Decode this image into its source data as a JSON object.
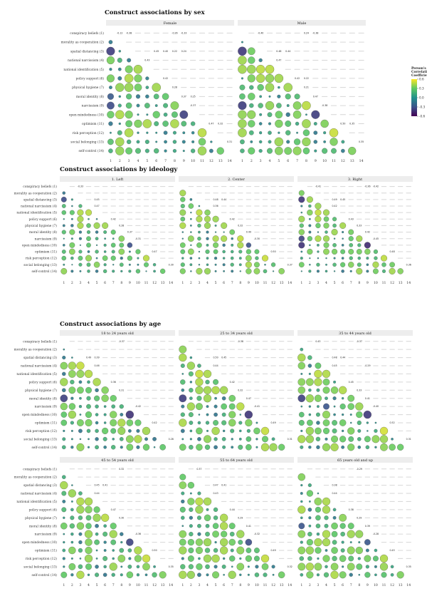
{
  "chart_data": {
    "type": "bubble-correlation-matrix",
    "row_labels": [
      "conspiracy beliefs (1)",
      "morality as cooperation (2)",
      "spatial distancing (3)",
      "national narcissism (4)",
      "national identification (5)",
      "policy support (6)",
      "physical hygiene (7)",
      "moral identity (8)",
      "narcissism (9)",
      "open mindedness (10)",
      "optimism (11)",
      "risk perception (12)",
      "social belonging (13)",
      "self-control (14)"
    ],
    "x_ticks": [
      "1",
      "2",
      "3",
      "4",
      "5",
      "6",
      "7",
      "8",
      "9",
      "10",
      "11",
      "12",
      "13",
      "14"
    ],
    "legend": {
      "title": [
        "Person's",
        "Correlation",
        "Coefficient"
      ],
      "ticks": [
        "0.6",
        "0.3",
        "0.0",
        "-0.3",
        "-0.6"
      ],
      "range": [
        -0.6,
        0.6
      ],
      "colors": [
        "#fde725",
        "#5ec962",
        "#21918c",
        "#3b528b",
        "#440154"
      ]
    },
    "rows": [
      {
        "title": "Construct associations by sex",
        "panels": [
          {
            "strip": "Female",
            "cells": [
              {
                "r": 1,
                "c": 2,
                "v": "-0.12"
              },
              {
                "r": 1,
                "c": 3,
                "v": "-0.38"
              },
              {
                "r": 1,
                "c": 8,
                "v": "-0.26"
              },
              {
                "r": 1,
                "c": 9,
                "v": "-0.33"
              },
              {
                "r": 3,
                "c": 6,
                "v": "0.45"
              },
              {
                "r": 3,
                "c": 7,
                "v": "0.40"
              },
              {
                "r": 3,
                "c": 8,
                "v": "0.22"
              },
              {
                "r": 3,
                "c": 9,
                "v": "0.24"
              },
              {
                "r": 4,
                "c": 5,
                "v": "0.43"
              },
              {
                "r": 6,
                "c": 7,
                "v": "0.42"
              },
              {
                "r": 7,
                "c": 8,
                "v": "0.28"
              },
              {
                "r": 8,
                "c": 9,
                "v": "0.37"
              },
              {
                "r": 8,
                "c": 10,
                "v": "0.25"
              },
              {
                "r": 9,
                "c": 10,
                "v": "-0.37"
              },
              {
                "r": 11,
                "c": 12,
                "v": "0.47"
              },
              {
                "r": 11,
                "c": 13,
                "v": "0.32"
              },
              {
                "r": 13,
                "c": 14,
                "v": "0.31"
              }
            ]
          },
          {
            "strip": "Male",
            "cells": [
              {
                "r": 1,
                "c": 3,
                "v": "-0.40"
              },
              {
                "r": 1,
                "c": 8,
                "v": "0.24"
              },
              {
                "r": 1,
                "c": 9,
                "v": "-0.38"
              },
              {
                "r": 3,
                "c": 5,
                "v": "0.48"
              },
              {
                "r": 3,
                "c": 6,
                "v": "0.44"
              },
              {
                "r": 4,
                "c": 5,
                "v": "0.47"
              },
              {
                "r": 6,
                "c": 7,
                "v": "0.42"
              },
              {
                "r": 6,
                "c": 8,
                "v": "0.22"
              },
              {
                "r": 7,
                "c": 8,
                "v": "0.21"
              },
              {
                "r": 8,
                "c": 9,
                "v": "0.47"
              },
              {
                "r": 9,
                "c": 10,
                "v": "-0.38"
              },
              {
                "r": 11,
                "c": 12,
                "v": "0.50"
              },
              {
                "r": 11,
                "c": 13,
                "v": "0.35"
              },
              {
                "r": 13,
                "c": 14,
                "v": "0.35"
              }
            ]
          }
        ]
      },
      {
        "title": "Construct associations by ideology",
        "panels": [
          {
            "strip": "1. Left",
            "cells": [
              {
                "r": 1,
                "c": 3,
                "v": "-0.33"
              },
              {
                "r": 3,
                "c": 5,
                "v": "0.45"
              },
              {
                "r": 4,
                "c": 5,
                "v": "0.47"
              },
              {
                "r": 6,
                "c": 7,
                "v": "0.42"
              },
              {
                "r": 7,
                "c": 8,
                "v": "0.28"
              },
              {
                "r": 8,
                "c": 9,
                "v": "0.37"
              },
              {
                "r": 9,
                "c": 10,
                "v": "-0.31"
              },
              {
                "r": 11,
                "c": 12,
                "v": "0.47"
              },
              {
                "r": 13,
                "c": 14,
                "v": "0.30"
              }
            ]
          },
          {
            "strip": "2. Center",
            "cells": [
              {
                "r": 3,
                "c": 5,
                "v": "0.48"
              },
              {
                "r": 3,
                "c": 6,
                "v": "0.44"
              },
              {
                "r": 4,
                "c": 5,
                "v": "0.36"
              },
              {
                "r": 6,
                "c": 7,
                "v": "0.42"
              },
              {
                "r": 7,
                "c": 8,
                "v": "0.32"
              },
              {
                "r": 8,
                "c": 9,
                "v": "0.49"
              },
              {
                "r": 9,
                "c": 10,
                "v": "-0.30"
              },
              {
                "r": 11,
                "c": 12,
                "v": "0.50"
              },
              {
                "r": 13,
                "c": 14,
                "v": "0.37"
              }
            ]
          },
          {
            "strip": "3. Right",
            "cells": [
              {
                "r": 1,
                "c": 3,
                "v": "-0.41"
              },
              {
                "r": 1,
                "c": 9,
                "v": "-0.36"
              },
              {
                "r": 1,
                "c": 10,
                "v": "-0.42"
              },
              {
                "r": 3,
                "c": 5,
                "v": "0.49"
              },
              {
                "r": 3,
                "c": 6,
                "v": "0.45"
              },
              {
                "r": 4,
                "c": 5,
                "v": "0.42"
              },
              {
                "r": 6,
                "c": 7,
                "v": "0.43"
              },
              {
                "r": 7,
                "c": 8,
                "v": "0.33"
              },
              {
                "r": 8,
                "c": 9,
                "v": "0.42"
              },
              {
                "r": 9,
                "c": 10,
                "v": "-0.45"
              },
              {
                "r": 11,
                "c": 12,
                "v": "0.48"
              },
              {
                "r": 13,
                "c": 14,
                "v": "0.36"
              }
            ]
          }
        ]
      },
      {
        "title": "Construct associations by age",
        "panels": [
          {
            "strip": "18 to 24 years old",
            "cells": [
              {
                "r": 1,
                "c": 8,
                "v": "-0.37"
              },
              {
                "r": 3,
                "c": 4,
                "v": "0.49"
              },
              {
                "r": 3,
                "c": 5,
                "v": "0.39"
              },
              {
                "r": 4,
                "c": 5,
                "v": "0.46"
              },
              {
                "r": 6,
                "c": 7,
                "v": "0.36"
              },
              {
                "r": 7,
                "c": 8,
                "v": "0.31"
              },
              {
                "r": 9,
                "c": 10,
                "v": "-0.42"
              },
              {
                "r": 11,
                "c": 12,
                "v": "0.42"
              },
              {
                "r": 13,
                "c": 14,
                "v": "0.28"
              }
            ]
          },
          {
            "strip": "25 to 34 years old",
            "cells": [
              {
                "r": 1,
                "c": 8,
                "v": "-0.38"
              },
              {
                "r": 3,
                "c": 5,
                "v": "0.50"
              },
              {
                "r": 3,
                "c": 6,
                "v": "0.45"
              },
              {
                "r": 4,
                "c": 5,
                "v": "0.44"
              },
              {
                "r": 6,
                "c": 7,
                "v": "0.42"
              },
              {
                "r": 7,
                "c": 8,
                "v": "0.32"
              },
              {
                "r": 8,
                "c": 9,
                "v": "0.47"
              },
              {
                "r": 9,
                "c": 10,
                "v": "-0.41"
              },
              {
                "r": 11,
                "c": 12,
                "v": "0.49"
              },
              {
                "r": 13,
                "c": 14,
                "v": "0.31"
              }
            ]
          },
          {
            "strip": "35 to 44 years old",
            "cells": [
              {
                "r": 1,
                "c": 3,
                "v": "0.43"
              },
              {
                "r": 1,
                "c": 8,
                "v": "-0.37"
              },
              {
                "r": 3,
                "c": 5,
                "v": "0.48"
              },
              {
                "r": 3,
                "c": 6,
                "v": "0.44"
              },
              {
                "r": 4,
                "c": 5,
                "v": "0.45"
              },
              {
                "r": 4,
                "c": 9,
                "v": "-0.29"
              },
              {
                "r": 6,
                "c": 7,
                "v": "0.45"
              },
              {
                "r": 7,
                "c": 8,
                "v": "0.33"
              },
              {
                "r": 8,
                "c": 9,
                "v": "0.41"
              },
              {
                "r": 9,
                "c": 10,
                "v": "-0.40"
              },
              {
                "r": 11,
                "c": 12,
                "v": "0.52"
              },
              {
                "r": 13,
                "c": 14,
                "v": "0.31"
              }
            ]
          }
        ]
      },
      {
        "title": "",
        "panels": [
          {
            "strip": "45 to 54 years old",
            "cells": [
              {
                "r": 1,
                "c": 8,
                "v": "0.32"
              },
              {
                "r": 3,
                "c": 5,
                "v": "0.45"
              },
              {
                "r": 3,
                "c": 6,
                "v": "0.41"
              },
              {
                "r": 4,
                "c": 5,
                "v": "0.44"
              },
              {
                "r": 6,
                "c": 7,
                "v": "0.47"
              },
              {
                "r": 7,
                "c": 8,
                "v": "0.30"
              },
              {
                "r": 9,
                "c": 10,
                "v": "-0.36"
              },
              {
                "r": 11,
                "c": 12,
                "v": "0.50"
              },
              {
                "r": 13,
                "c": 14,
                "v": "0.35"
              }
            ]
          },
          {
            "strip": "55 to 64 years old",
            "cells": [
              {
                "r": 1,
                "c": 3,
                "v": "0.37"
              },
              {
                "r": 3,
                "c": 5,
                "v": "0.47"
              },
              {
                "r": 3,
                "c": 6,
                "v": "0.41"
              },
              {
                "r": 4,
                "c": 5,
                "v": "0.43"
              },
              {
                "r": 6,
                "c": 7,
                "v": "0.44"
              },
              {
                "r": 7,
                "c": 8,
                "v": "0.29"
              },
              {
                "r": 8,
                "c": 9,
                "v": "0.41"
              },
              {
                "r": 9,
                "c": 10,
                "v": "-0.32"
              },
              {
                "r": 11,
                "c": 12,
                "v": "0.49"
              },
              {
                "r": 13,
                "c": 14,
                "v": "0.32"
              }
            ]
          },
          {
            "strip": "65 years old and up",
            "cells": [
              {
                "r": 1,
                "c": 8,
                "v": "-0.29"
              },
              {
                "r": 3,
                "c": 5,
                "v": "0.38"
              },
              {
                "r": 4,
                "c": 5,
                "v": "0.44"
              },
              {
                "r": 6,
                "c": 7,
                "v": "0.38"
              },
              {
                "r": 7,
                "c": 8,
                "v": "0.29"
              },
              {
                "r": 8,
                "c": 9,
                "v": "0.39"
              },
              {
                "r": 9,
                "c": 10,
                "v": "-0.28"
              },
              {
                "r": 11,
                "c": 12,
                "v": "0.45"
              },
              {
                "r": 13,
                "c": 14,
                "v": "0.35"
              }
            ]
          }
        ]
      }
    ]
  }
}
